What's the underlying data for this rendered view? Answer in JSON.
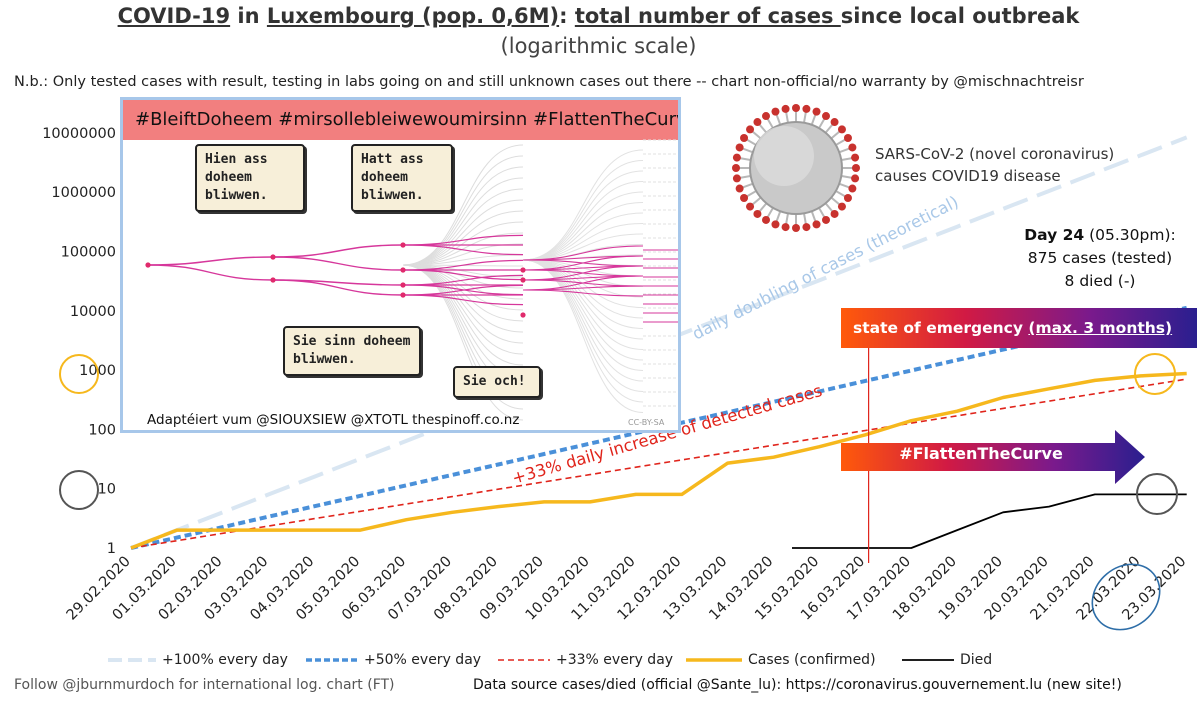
{
  "header": {
    "title_parts": [
      "COVID-19",
      " in ",
      "Luxembourg ",
      "(pop. 0,6M)",
      ": ",
      "total number of cases ",
      "since local outbreak"
    ],
    "subtitle": "(logarithmic  scale)",
    "note": "N.b.: Only tested  cases with result, testing  in labs going on and still  unknown cases out there  -- chart non-official/no  warranty by @mischnachtreisr"
  },
  "inset": {
    "banner": "#BleiftDoheem  #mirsollebleiwewoumirsinn  #FlattenTheCurve",
    "bubble1": "Hien ass doheem bliwwen.",
    "bubble2": "Hatt ass doheem bliwwen.",
    "bubble3": "Sie sinn doheem bliwwen.",
    "bubble4": "Sie och!",
    "credit": "Adaptéiert vum @SIOUXSIEW @XTOTL thespinoff.co.nz",
    "license": "CC-BY-SA"
  },
  "virus_caption": [
    "SARS-CoV-2 (novel coronavirus)",
    "causes COVID19 disease"
  ],
  "day_info": {
    "day_label": "Day 24",
    "time": " (05.30pm):",
    "cases": "875 cases (tested)",
    "died": "8 died (-)"
  },
  "emergency": {
    "label": "state of emergency ",
    "duration": "(max. 3 months)"
  },
  "flatten_label": "#FlattenTheCurve",
  "footer": {
    "left": "Follow  @jburnmurdoch for international log. chart (FT)",
    "right": "Data source cases/died (official @Sante_lu):  https://coronavirus.gouvernement.lu  (new site!)"
  },
  "colors": {
    "doubling": "#d9e6f2",
    "fifty": "#4a90d9",
    "thirtythree": "#e0241b",
    "cases": "#f6b81d",
    "died": "#000000",
    "gold_circle": "#f6b81d",
    "grey_circle": "#555555",
    "blue_circle": "#2e6ea8",
    "vline": "#e0241b"
  },
  "chart_data": {
    "type": "line",
    "y_scale": "log",
    "ylim": [
      1,
      10000000
    ],
    "y_ticks": [
      1,
      10,
      100,
      1000,
      10000,
      100000,
      1000000,
      10000000
    ],
    "y_tick_labels": [
      "1",
      "10",
      "100",
      "1000",
      "10000",
      "100000",
      "1000000",
      "10000000"
    ],
    "x": [
      "29.02.2020",
      "01.03.2020",
      "02.03.2020",
      "03.03.2020",
      "04.03.2020",
      "05.03.2020",
      "06.03.2020",
      "07.03.2020",
      "08.03.2020",
      "09.03.2020",
      "10.03.2020",
      "11.03.2020",
      "12.03.2020",
      "13.03.2020",
      "14.03.2020",
      "15.03.2020",
      "16.03.2020",
      "17.03.2020",
      "18.03.2020",
      "19.03.2020",
      "20.03.2020",
      "21.03.2020",
      "22.03.2020",
      "23.03.2020"
    ],
    "series": [
      {
        "name": "+100% every day",
        "style": "dashed-light",
        "values": [
          1,
          2,
          4,
          8,
          16,
          32,
          64,
          128,
          256,
          512,
          1024,
          2048,
          4096,
          8192,
          16384,
          32768,
          65536,
          131072,
          262144,
          524288,
          1048576,
          2097152,
          4194304,
          8388608
        ]
      },
      {
        "name": "+50% every day",
        "style": "dashed-blue",
        "values": [
          1,
          1.5,
          2.25,
          3.38,
          5.06,
          7.59,
          11.39,
          17.09,
          25.63,
          38.44,
          57.67,
          86.5,
          129.7,
          194.6,
          291.9,
          437.9,
          656.8,
          985.3,
          1478,
          2217,
          3325,
          4988,
          7482,
          11223
        ]
      },
      {
        "name": "+33% every day",
        "style": "dashed-red",
        "values": [
          1,
          1.33,
          1.77,
          2.35,
          3.13,
          4.16,
          5.53,
          7.36,
          9.79,
          13.0,
          17.3,
          23.0,
          30.6,
          40.7,
          54.2,
          72.1,
          95.9,
          127.5,
          169.6,
          225.6,
          300.0,
          399.0,
          530.7,
          705.8
        ]
      },
      {
        "name": "Cases (confirmed)",
        "style": "solid-gold",
        "values": [
          1,
          2,
          2,
          2,
          2,
          2,
          3,
          4,
          5,
          6,
          6,
          8,
          8,
          27,
          34,
          51,
          81,
          140,
          203,
          345,
          484,
          670,
          798,
          875
        ]
      },
      {
        "name": "Died",
        "style": "solid-black",
        "values": [
          null,
          null,
          null,
          null,
          null,
          null,
          null,
          null,
          null,
          null,
          null,
          null,
          null,
          null,
          null,
          1,
          1,
          1,
          2,
          4,
          5,
          8,
          8,
          8
        ]
      }
    ],
    "annotations": {
      "doubling_text": "daily doubling of cases (theoretical)",
      "increase_text": "+33% daily increase of detected cases",
      "emergency_date": "16.03.2020"
    },
    "legend_position": "bottom"
  }
}
